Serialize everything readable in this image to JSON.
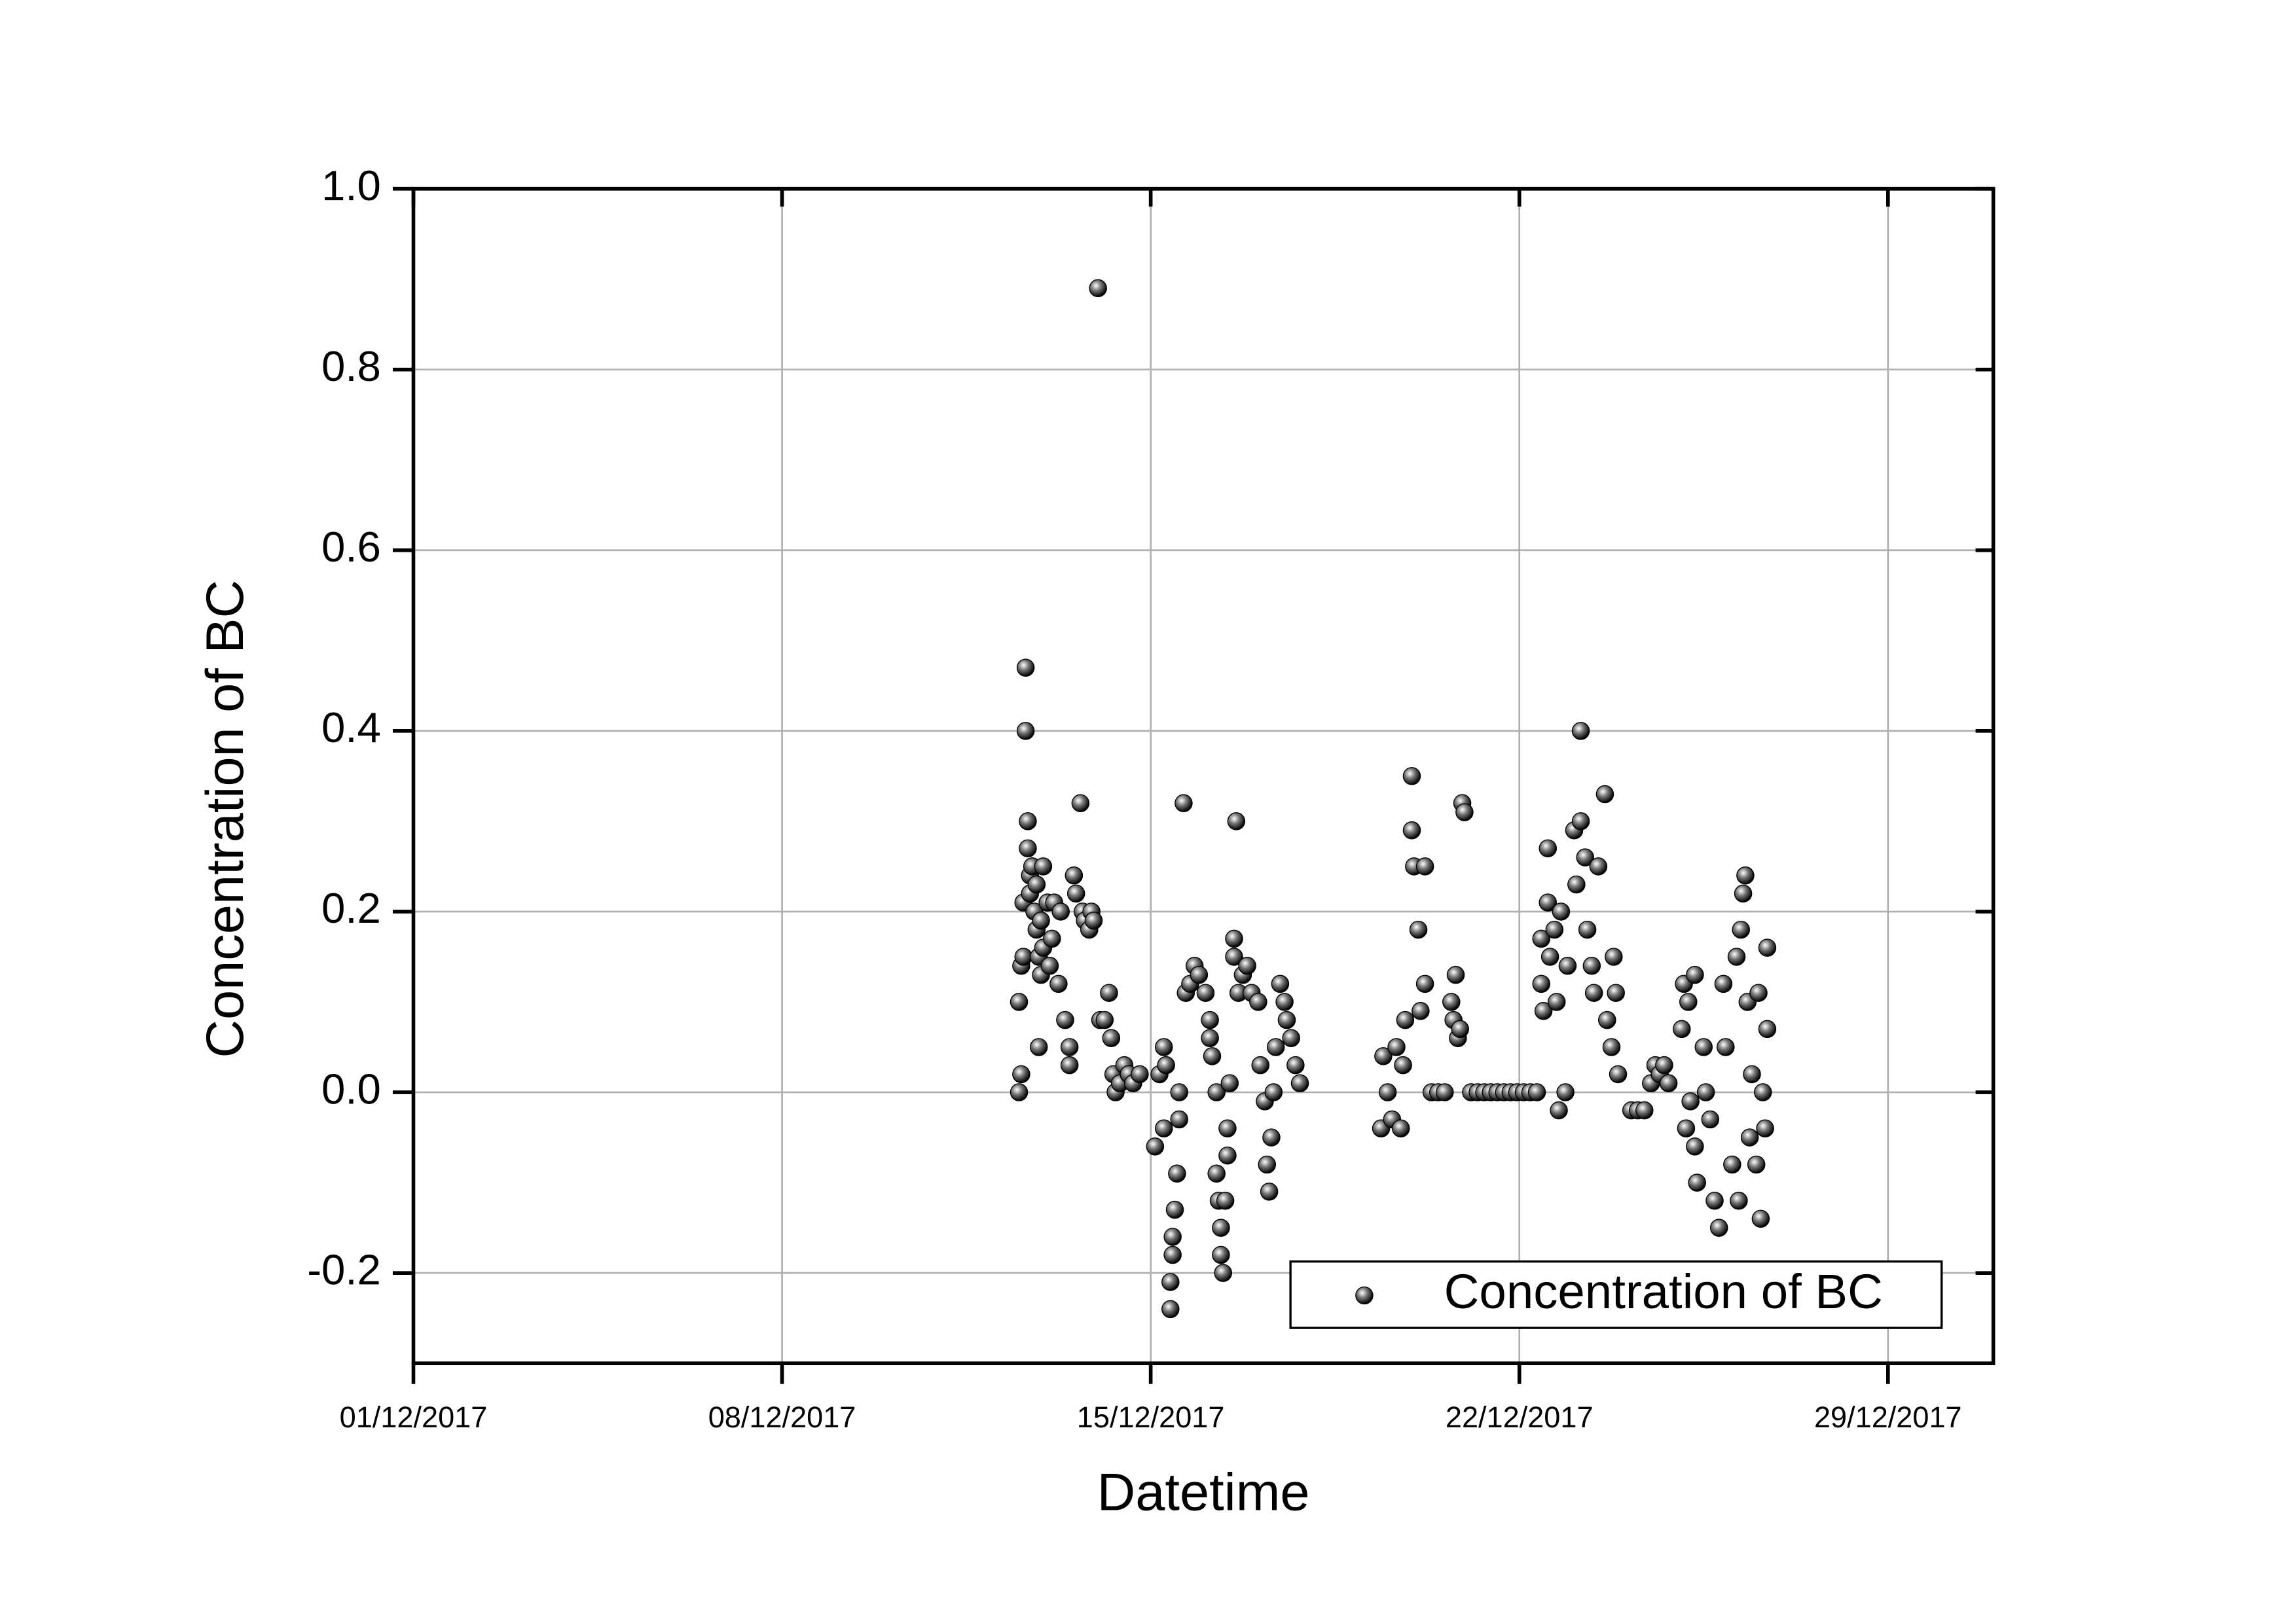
{
  "chart_data": {
    "type": "scatter",
    "x_label": "Datetime",
    "y_label": "Concentration of BC",
    "xlim": [
      "2017-12-01 00:00",
      "2017-12-31 00:00"
    ],
    "xticks": [
      {
        "value": "2017-12-01 00:00",
        "label": "01/12/2017"
      },
      {
        "value": "2017-12-08 00:00",
        "label": "08/12/2017"
      },
      {
        "value": "2017-12-15 00:00",
        "label": "15/12/2017"
      },
      {
        "value": "2017-12-22 00:00",
        "label": "22/12/2017"
      },
      {
        "value": "2017-12-29 00:00",
        "label": "29/12/2017"
      }
    ],
    "ylim": [
      -0.3,
      1.0
    ],
    "yticks": [
      -0.2,
      {
        "value": 0,
        "label": "0.0"
      },
      0.2,
      0.4,
      0.6,
      0.8,
      {
        "value": 1,
        "label": "1.0"
      }
    ],
    "grid": true,
    "legend": "lower right",
    "x": [
      "2017-12-12 12:00",
      "2017-12-12 12:00",
      "2017-12-12 13:00",
      "2017-12-12 13:00",
      "2017-12-12 14:00",
      "2017-12-12 14:00",
      "2017-12-12 15:00",
      "2017-12-12 15:00",
      "2017-12-12 16:00",
      "2017-12-12 16:00",
      "2017-12-12 17:00",
      "2017-12-12 17:00",
      "2017-12-12 18:00",
      "2017-12-12 19:00",
      "2017-12-12 20:00",
      "2017-12-12 20:00",
      "2017-12-12 21:00",
      "2017-12-12 21:00",
      "2017-12-12 22:00",
      "2017-12-12 22:00",
      "2017-12-12 23:00",
      "2017-12-12 23:00",
      "2017-12-13 01:00",
      "2017-12-13 02:00",
      "2017-12-13 03:00",
      "2017-12-13 04:00",
      "2017-12-13 06:00",
      "2017-12-13 07:00",
      "2017-12-13 09:00",
      "2017-12-13 11:00",
      "2017-12-13 11:00",
      "2017-12-13 13:00",
      "2017-12-13 14:00",
      "2017-12-13 16:00",
      "2017-12-13 17:00",
      "2017-12-13 18:00",
      "2017-12-13 20:00",
      "2017-12-13 21:00",
      "2017-12-13 22:00",
      "2017-12-14 00:00",
      "2017-12-14 01:00",
      "2017-12-14 03:00",
      "2017-12-14 05:00",
      "2017-12-14 06:00",
      "2017-12-14 07:00",
      "2017-12-14 08:00",
      "2017-12-14 10:00",
      "2017-12-14 12:00",
      "2017-12-14 14:00",
      "2017-12-14 16:00",
      "2017-12-14 19:00",
      "2017-12-15 02:00",
      "2017-12-15 04:00",
      "2017-12-15 06:00",
      "2017-12-15 06:00",
      "2017-12-15 07:00",
      "2017-12-15 09:00",
      "2017-12-15 09:00",
      "2017-12-15 10:00",
      "2017-12-15 10:00",
      "2017-12-15 11:00",
      "2017-12-15 12:00",
      "2017-12-15 13:00",
      "2017-12-15 13:00",
      "2017-12-15 15:00",
      "2017-12-15 16:00",
      "2017-12-15 18:00",
      "2017-12-15 20:00",
      "2017-12-15 22:00",
      "2017-12-16 01:00",
      "2017-12-16 03:00",
      "2017-12-16 03:00",
      "2017-12-16 04:00",
      "2017-12-16 06:00",
      "2017-12-16 06:00",
      "2017-12-16 07:00",
      "2017-12-16 08:00",
      "2017-12-16 08:00",
      "2017-12-16 09:00",
      "2017-12-16 10:00",
      "2017-12-16 11:00",
      "2017-12-16 11:00",
      "2017-12-16 12:00",
      "2017-12-16 14:00",
      "2017-12-16 14:00",
      "2017-12-16 15:00",
      "2017-12-16 16:00",
      "2017-12-16 18:00",
      "2017-12-16 20:00",
      "2017-12-16 22:00",
      "2017-12-17 01:00",
      "2017-12-17 02:00",
      "2017-12-17 04:00",
      "2017-12-17 05:00",
      "2017-12-17 06:00",
      "2017-12-17 07:00",
      "2017-12-17 08:00",
      "2017-12-17 09:00",
      "2017-12-17 11:00",
      "2017-12-17 13:00",
      "2017-12-17 14:00",
      "2017-12-17 16:00",
      "2017-12-17 18:00",
      "2017-12-17 20:00",
      "2017-12-19 09:00",
      "2017-12-19 10:00",
      "2017-12-19 12:00",
      "2017-12-19 14:00",
      "2017-12-19 16:00",
      "2017-12-19 18:00",
      "2017-12-19 19:00",
      "2017-12-19 20:00",
      "2017-12-19 23:00",
      "2017-12-19 23:00",
      "2017-12-20 00:00",
      "2017-12-20 02:00",
      "2017-12-20 03:00",
      "2017-12-20 05:00",
      "2017-12-20 05:00",
      "2017-12-20 08:00",
      "2017-12-20 11:00",
      "2017-12-20 14:00",
      "2017-12-20 17:00",
      "2017-12-20 18:00",
      "2017-12-20 19:00",
      "2017-12-20 20:00",
      "2017-12-20 21:00",
      "2017-12-20 22:00",
      "2017-12-20 23:00",
      "2017-12-21 02:00",
      "2017-12-21 05:00",
      "2017-12-21 08:00",
      "2017-12-21 11:00",
      "2017-12-21 14:00",
      "2017-12-21 17:00",
      "2017-12-21 20:00",
      "2017-12-21 23:00",
      "2017-12-22 02:00",
      "2017-12-22 05:00",
      "2017-12-22 08:00",
      "2017-12-22 10:00",
      "2017-12-22 10:00",
      "2017-12-22 11:00",
      "2017-12-22 13:00",
      "2017-12-22 13:00",
      "2017-12-22 14:00",
      "2017-12-22 16:00",
      "2017-12-22 17:00",
      "2017-12-22 18:00",
      "2017-12-22 19:00",
      "2017-12-22 21:00",
      "2017-12-22 22:00",
      "2017-12-23 01:00",
      "2017-12-23 02:00",
      "2017-12-23 04:00",
      "2017-12-23 04:00",
      "2017-12-23 06:00",
      "2017-12-23 07:00",
      "2017-12-23 09:00",
      "2017-12-23 10:00",
      "2017-12-23 12:00",
      "2017-12-23 15:00",
      "2017-12-23 16:00",
      "2017-12-23 18:00",
      "2017-12-23 19:00",
      "2017-12-23 20:00",
      "2017-12-23 21:00",
      "2017-12-24 03:00",
      "2017-12-24 06:00",
      "2017-12-24 09:00",
      "2017-12-24 12:00",
      "2017-12-24 14:00",
      "2017-12-24 16:00",
      "2017-12-24 18:00",
      "2017-12-24 20:00",
      "2017-12-25 02:00",
      "2017-12-25 03:00",
      "2017-12-25 04:00",
      "2017-12-25 05:00",
      "2017-12-25 06:00",
      "2017-12-25 08:00",
      "2017-12-25 08:00",
      "2017-12-25 09:00",
      "2017-12-25 12:00",
      "2017-12-25 13:00",
      "2017-12-25 15:00",
      "2017-12-25 17:00",
      "2017-12-25 19:00",
      "2017-12-25 21:00",
      "2017-12-25 22:00",
      "2017-12-26 01:00",
      "2017-12-26 03:00",
      "2017-12-26 04:00",
      "2017-12-26 05:00",
      "2017-12-26 06:00",
      "2017-12-26 07:00",
      "2017-12-26 08:00",
      "2017-12-26 09:00",
      "2017-12-26 10:00",
      "2017-12-26 12:00",
      "2017-12-26 13:00",
      "2017-12-26 14:00",
      "2017-12-26 15:00",
      "2017-12-26 16:00",
      "2017-12-26 17:00",
      "2017-12-26 17:00"
    ],
    "series": [
      {
        "name": "Concentration of BC",
        "color": "#000000",
        "values": [
          0.1,
          0.0,
          0.14,
          0.02,
          0.15,
          0.21,
          0.47,
          0.4,
          0.3,
          0.27,
          0.24,
          0.22,
          0.25,
          0.2,
          0.18,
          0.23,
          0.05,
          0.15,
          0.13,
          0.19,
          0.25,
          0.16,
          0.21,
          0.14,
          0.17,
          0.21,
          0.12,
          0.2,
          0.08,
          0.05,
          0.03,
          0.24,
          0.22,
          0.32,
          0.2,
          0.19,
          0.18,
          0.2,
          0.19,
          0.89,
          0.08,
          0.08,
          0.11,
          0.06,
          0.02,
          0.0,
          0.01,
          0.03,
          0.02,
          0.01,
          0.02,
          -0.06,
          0.02,
          0.05,
          -0.04,
          0.03,
          -0.24,
          -0.21,
          -0.18,
          -0.16,
          -0.13,
          -0.09,
          -0.03,
          0.0,
          0.32,
          0.11,
          0.12,
          0.14,
          0.13,
          0.11,
          0.08,
          0.06,
          0.04,
          0.0,
          -0.09,
          -0.12,
          -0.15,
          -0.18,
          -0.2,
          -0.12,
          -0.07,
          -0.04,
          0.01,
          0.17,
          0.15,
          0.3,
          0.11,
          0.13,
          0.14,
          0.11,
          0.1,
          0.03,
          -0.01,
          -0.08,
          -0.11,
          -0.05,
          0.0,
          0.05,
          0.12,
          0.1,
          0.08,
          0.06,
          0.03,
          0.01,
          -0.04,
          0.04,
          0.0,
          -0.03,
          0.05,
          -0.04,
          0.03,
          0.08,
          0.35,
          0.29,
          0.25,
          0.18,
          0.09,
          0.12,
          0.25,
          0.0,
          0.0,
          0.0,
          0.1,
          0.08,
          0.13,
          0.06,
          0.07,
          0.32,
          0.31,
          0.0,
          0.0,
          0.0,
          0.0,
          0.0,
          0.0,
          0.0,
          0.0,
          0.0,
          0.0,
          0.0,
          0.17,
          0.12,
          0.09,
          0.27,
          0.21,
          0.15,
          0.18,
          0.1,
          -0.02,
          0.2,
          0.0,
          0.14,
          0.29,
          0.23,
          0.4,
          0.3,
          0.26,
          0.18,
          0.14,
          0.11,
          0.25,
          0.33,
          0.08,
          0.05,
          0.15,
          0.11,
          0.02,
          -0.02,
          -0.02,
          -0.02,
          0.01,
          0.03,
          0.02,
          0.03,
          0.01,
          0.07,
          0.12,
          -0.04,
          0.1,
          -0.01,
          0.13,
          -0.06,
          -0.1,
          0.05,
          0.0,
          -0.03,
          -0.12,
          -0.15,
          0.12,
          0.05,
          -0.08,
          0.15,
          -0.12,
          0.18,
          0.22,
          0.24,
          0.1,
          -0.05,
          0.02,
          -0.08,
          0.11,
          -0.14,
          0.0,
          -0.04,
          0.16,
          0.07
        ]
      }
    ]
  }
}
